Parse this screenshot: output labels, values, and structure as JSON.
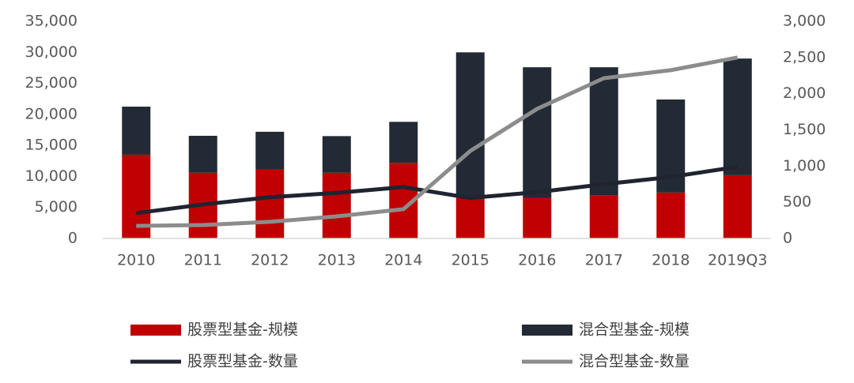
{
  "chart_data": {
    "type": "combo",
    "stacked": true,
    "grid": false,
    "categories": [
      "2010",
      "2011",
      "2012",
      "2013",
      "2014",
      "2015",
      "2016",
      "2017",
      "2018",
      "2019Q3"
    ],
    "ylim": [
      0,
      35000
    ],
    "yticks": [
      0,
      {
        "value": 5000,
        "label": "5,000"
      },
      {
        "value": 10000,
        "label": "10,000"
      },
      {
        "value": 15000,
        "label": "15,000"
      },
      {
        "value": 20000,
        "label": "20,000"
      },
      {
        "value": 25000,
        "label": "25,000"
      },
      {
        "value": 30000,
        "label": "30,000"
      },
      {
        "value": 35000,
        "label": "35,000"
      }
    ],
    "y2lim": [
      0,
      3000
    ],
    "y2ticks": [
      0,
      500,
      {
        "value": 1000,
        "label": "1,000"
      },
      {
        "value": 1500,
        "label": "1,500"
      },
      {
        "value": 2000,
        "label": "2,000"
      },
      {
        "value": 2500,
        "label": "2,500"
      },
      {
        "value": 3000,
        "label": "3,000"
      }
    ],
    "series": [
      {
        "name": "股票型基金-规模",
        "kind": "bar",
        "color": "#c00000",
        "values": [
          13500,
          10600,
          11200,
          10600,
          12200,
          6500,
          6500,
          6900,
          7400,
          10200
        ]
      },
      {
        "name": "混合型基金-规模",
        "kind": "bar",
        "color": "#222a35",
        "values": [
          7750,
          5950,
          6000,
          5900,
          6600,
          23500,
          21100,
          20700,
          15000,
          18800
        ]
      },
      {
        "name": "股票型基金-数量",
        "kind": "line",
        "axis": "y2",
        "color": "#1f2430",
        "values": [
          350,
          470,
          570,
          630,
          710,
          560,
          640,
          750,
          850,
          990
        ]
      },
      {
        "name": "混合型基金-数量",
        "kind": "line",
        "axis": "y2",
        "color": "#8c8c8c",
        "values": [
          175,
          185,
          230,
          305,
          405,
          1210,
          1790,
          2215,
          2325,
          2500
        ]
      }
    ]
  }
}
